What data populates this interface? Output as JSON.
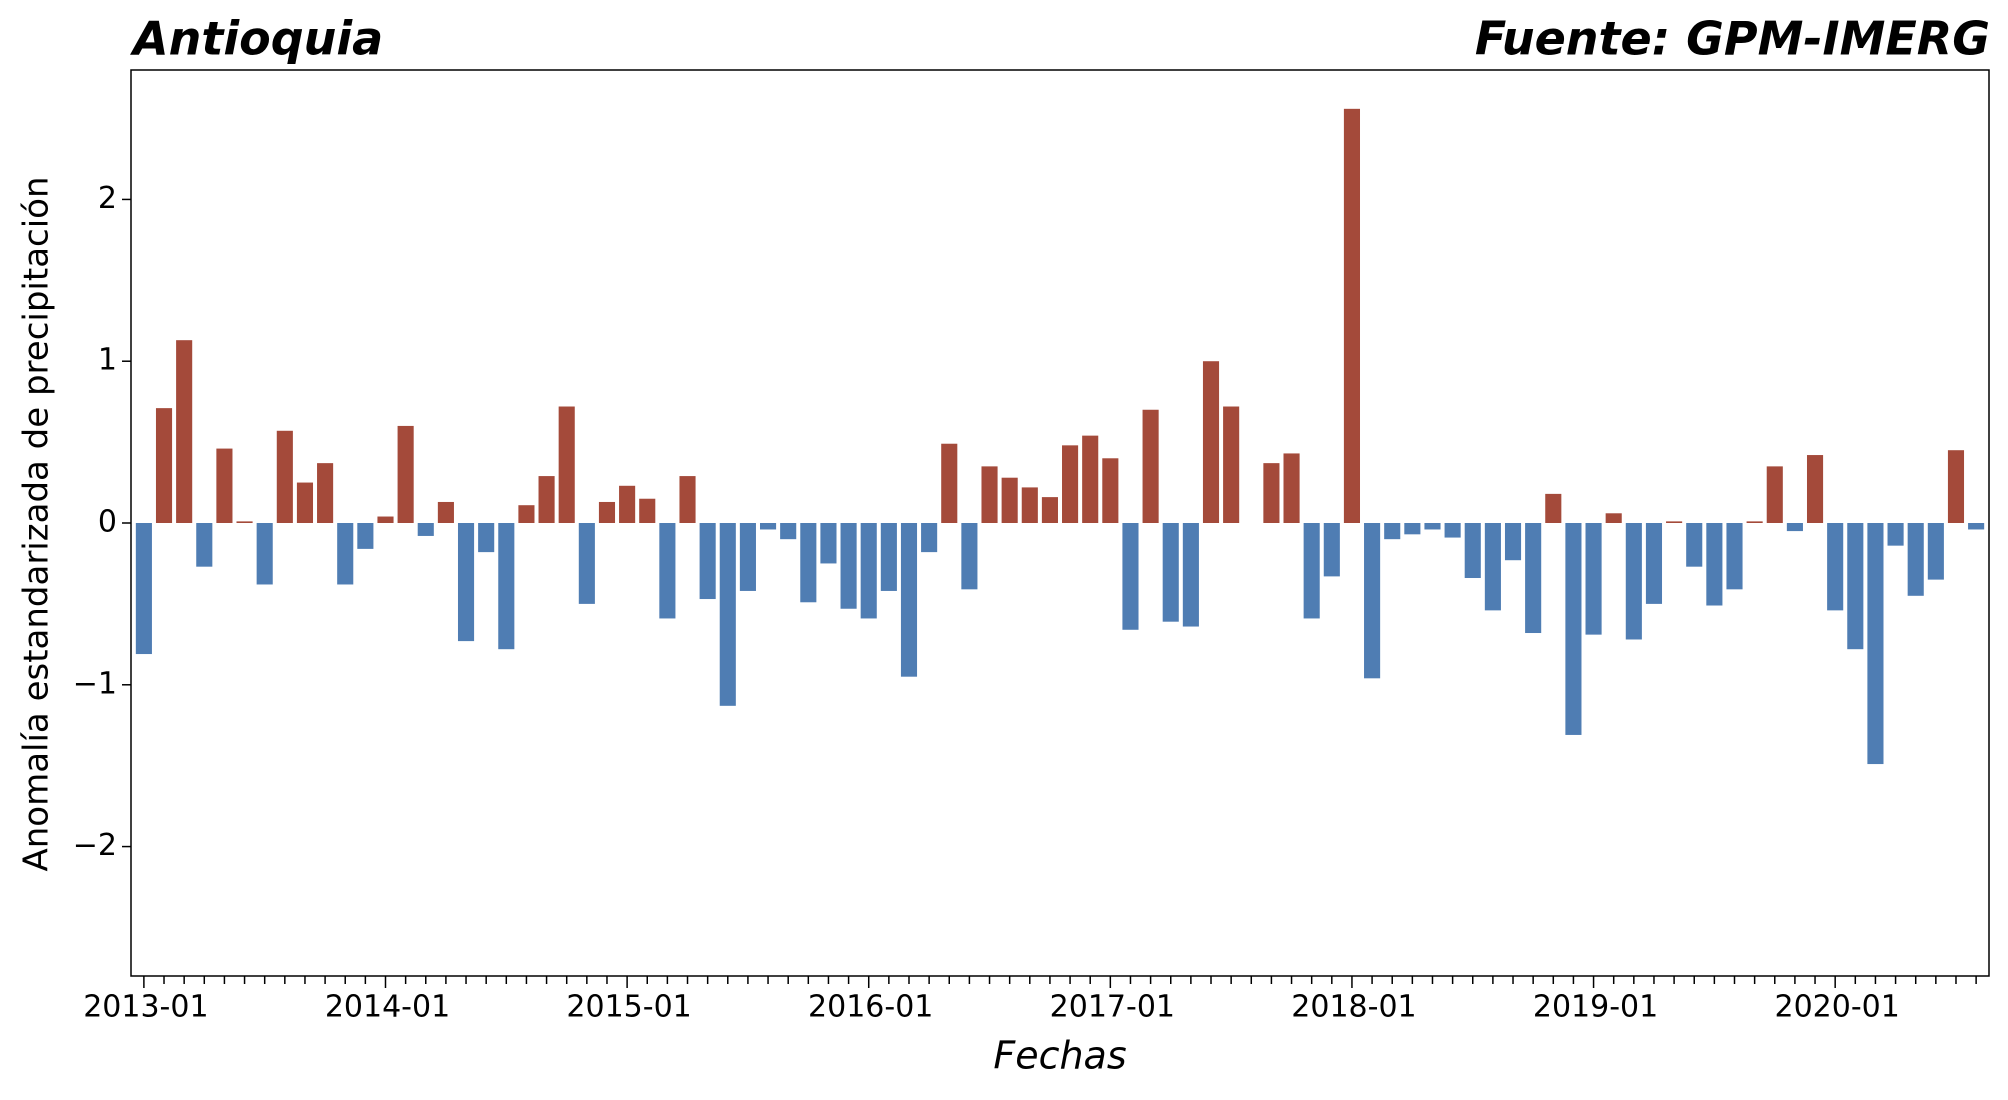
{
  "chart_data": {
    "type": "bar",
    "title": "Antioquia",
    "source": "Fuente: GPM-IMERG",
    "x_label": "Fechas",
    "y_label": "Anomalía estandarizada de precipitación",
    "categories": [
      "2013-01",
      null,
      null,
      null,
      null,
      null,
      null,
      null,
      null,
      null,
      null,
      null,
      "2014-01",
      null,
      null,
      null,
      null,
      null,
      null,
      null,
      null,
      null,
      null,
      null,
      "2015-01",
      null,
      null,
      null,
      null,
      null,
      null,
      null,
      null,
      null,
      null,
      null,
      "2016-01",
      null,
      null,
      null,
      null,
      null,
      null,
      null,
      null,
      null,
      null,
      null,
      "2017-01",
      null,
      null,
      null,
      null,
      null,
      null,
      null,
      null,
      null,
      null,
      null,
      "2018-01",
      null,
      null,
      null,
      null,
      null,
      null,
      null,
      null,
      null,
      null,
      null,
      "2019-01",
      null,
      null,
      null,
      null,
      null,
      null,
      null,
      null,
      null,
      null,
      null,
      "2020-01",
      null,
      null,
      null,
      null,
      null,
      null,
      null
    ],
    "values": [
      -0.81,
      0.71,
      1.13,
      -0.27,
      0.46,
      0.01,
      -0.38,
      0.57,
      0.25,
      0.37,
      -0.38,
      -0.16,
      0.04,
      0.6,
      -0.08,
      0.13,
      -0.73,
      -0.18,
      -0.78,
      0.11,
      0.29,
      0.72,
      -0.5,
      0.13,
      0.23,
      0.15,
      -0.59,
      0.29,
      -0.47,
      -1.13,
      -0.42,
      -0.04,
      -0.1,
      -0.49,
      -0.25,
      -0.53,
      -0.59,
      -0.42,
      -0.95,
      -0.18,
      0.49,
      -0.41,
      0.35,
      0.28,
      0.22,
      0.16,
      0.48,
      0.54,
      0.4,
      -0.66,
      0.7,
      -0.61,
      -0.64,
      1.0,
      0.72,
      0,
      0.37,
      0.43,
      -0.59,
      -0.33,
      2.56,
      -0.96,
      -0.1,
      -0.07,
      -0.04,
      -0.09,
      -0.34,
      -0.54,
      -0.23,
      -0.68,
      0.18,
      -1.31,
      -0.69,
      0.06,
      -0.72,
      -0.5,
      0.01,
      -0.27,
      -0.51,
      -0.41,
      0.01,
      0.35,
      -0.05,
      0.42,
      -0.54,
      -0.78,
      -1.49,
      -0.14,
      -0.45,
      -0.35,
      0.45,
      -0.04
    ],
    "positive_color": "#a44a3a",
    "negative_color": "#4f7db3",
    "ylim": [
      -2.8,
      2.8
    ],
    "yticks": [
      {
        "value": -2,
        "label": "−2"
      },
      {
        "value": -1,
        "label": "−1"
      },
      0,
      1,
      2
    ],
    "grid": false
  }
}
